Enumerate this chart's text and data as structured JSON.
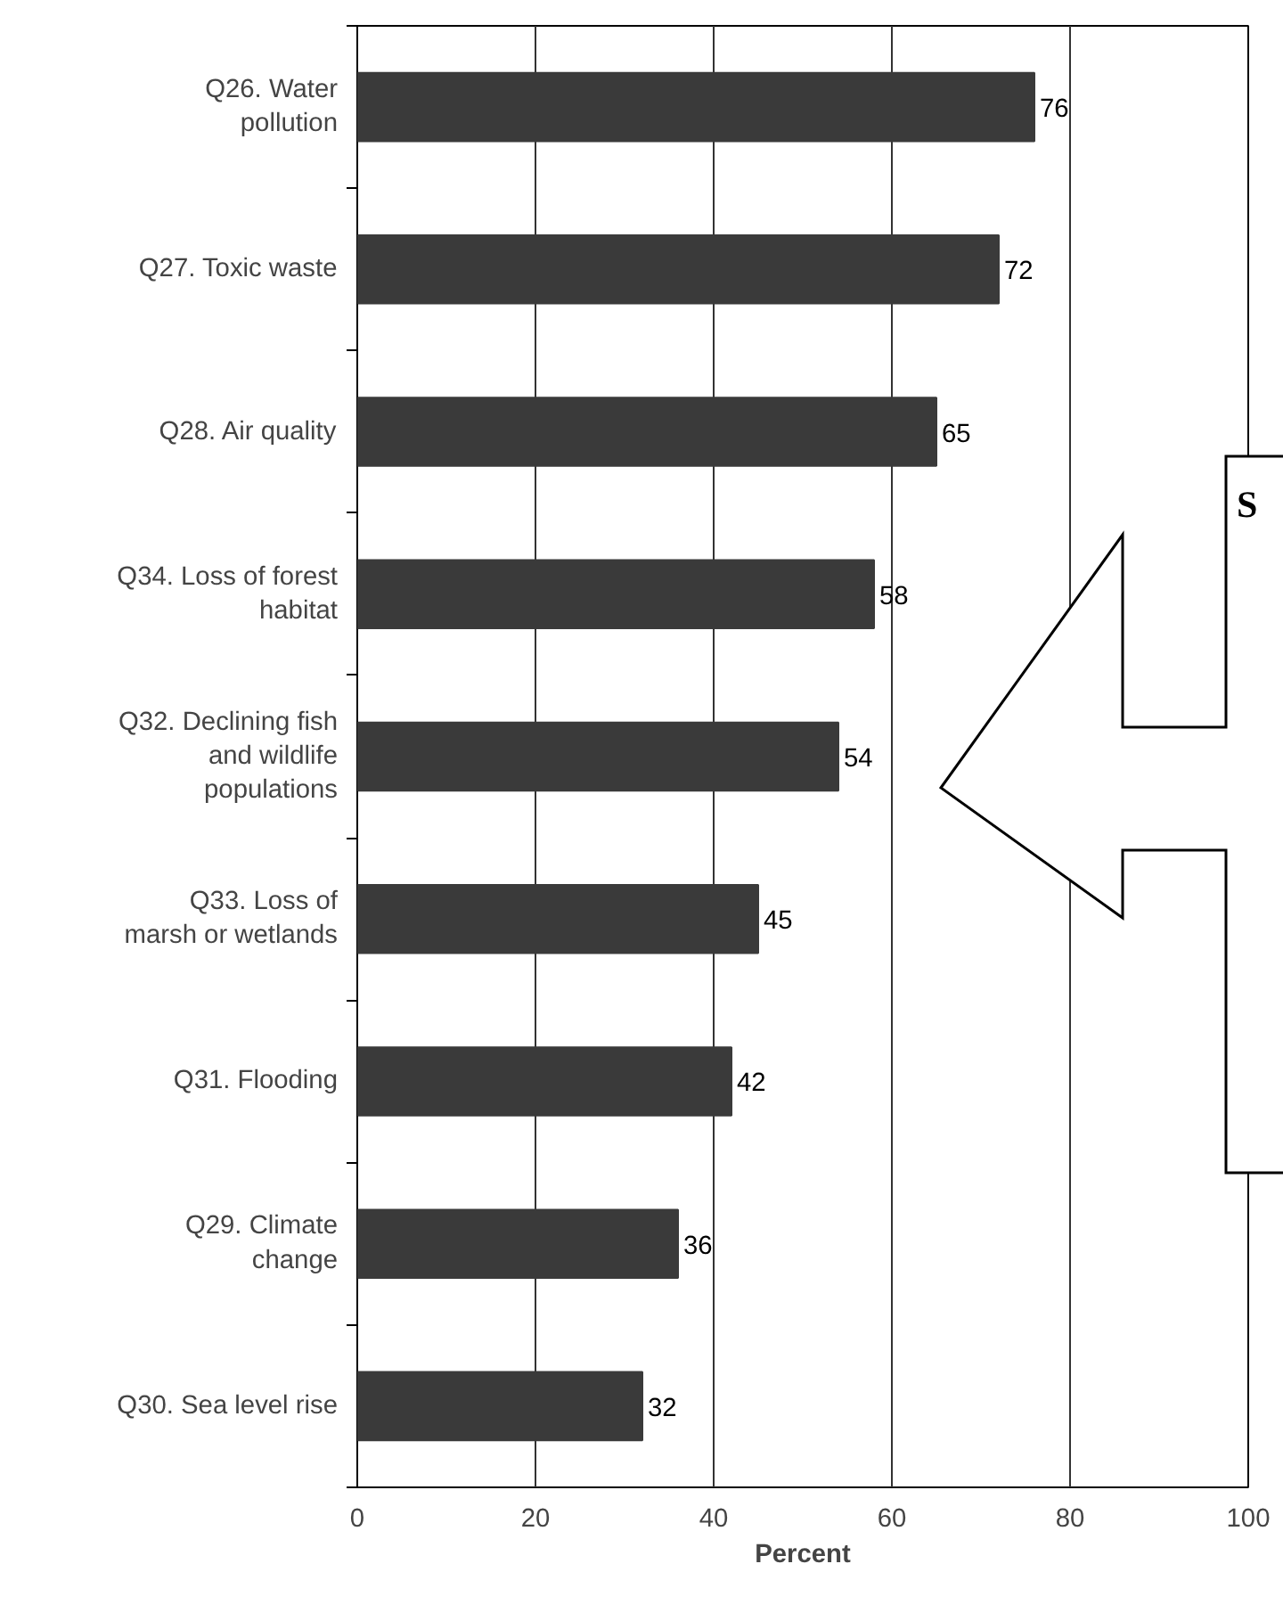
{
  "chart_data": {
    "type": "bar",
    "orientation": "horizontal",
    "xlabel": "Percent",
    "categories": [
      "Q26. Water\npollution",
      "Q27. Toxic waste",
      "Q28. Air quality",
      "Q34. Loss of forest\nhabitat",
      "Q32. Declining fish\nand wildlife\npopulations",
      "Q33. Loss of\nmarsh or wetlands",
      "Q31. Flooding",
      "Q29. Climate\nchange",
      "Q30. Sea level rise"
    ],
    "values": [
      76,
      72,
      65,
      58,
      54,
      45,
      42,
      36,
      32
    ],
    "color": "#3a3a3a",
    "data_labels": true,
    "grid": "x",
    "xlim": [
      0,
      100
    ],
    "xticks": [
      0,
      20,
      40,
      60,
      80,
      100
    ],
    "annotations": [
      "S"
    ]
  }
}
